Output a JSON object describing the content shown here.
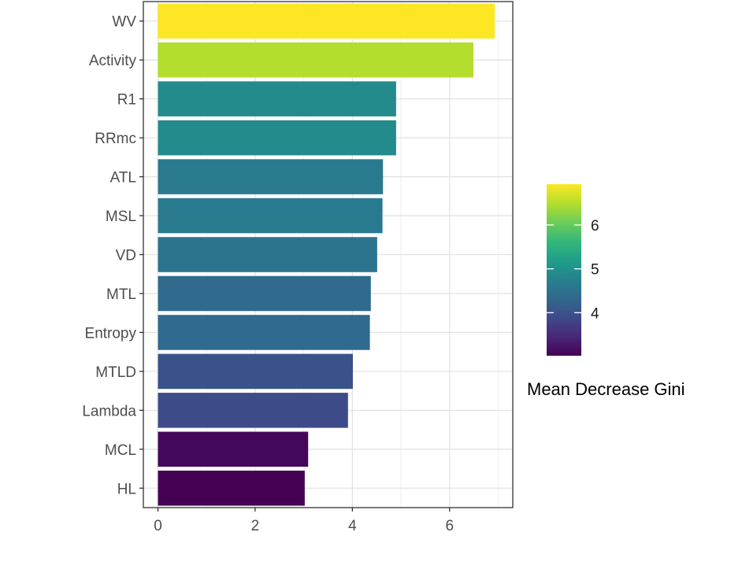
{
  "chart_data": {
    "type": "bar",
    "orientation": "horizontal",
    "title": "",
    "xlabel": "",
    "ylabel": "",
    "categories": [
      "WV",
      "Activity",
      "R1",
      "RRmc",
      "ATL",
      "MSL",
      "VD",
      "MTL",
      "Entropy",
      "MTLD",
      "Lambda",
      "MCL",
      "HL"
    ],
    "values": [
      6.93,
      6.49,
      4.9,
      4.9,
      4.63,
      4.62,
      4.51,
      4.38,
      4.36,
      4.01,
      3.91,
      3.09,
      3.02
    ],
    "xlim": [
      -0.3,
      7.3
    ],
    "xticks": [
      0,
      2,
      4,
      6
    ],
    "xtick_labels": [
      "0",
      "2",
      "4",
      "6"
    ],
    "grid": true,
    "legend": {
      "title": "Mean Decrease Gini",
      "type": "colorbar",
      "position": "right",
      "range": [
        3.02,
        6.93
      ],
      "ticks": [
        4,
        5,
        6
      ],
      "tick_labels": [
        "4",
        "5",
        "6"
      ],
      "colormap": "viridis",
      "stops": [
        "#440154",
        "#482878",
        "#3e4a89",
        "#31688e",
        "#26828e",
        "#1f9e89",
        "#35b779",
        "#6dcd59",
        "#b4de2c",
        "#fde725"
      ]
    }
  }
}
